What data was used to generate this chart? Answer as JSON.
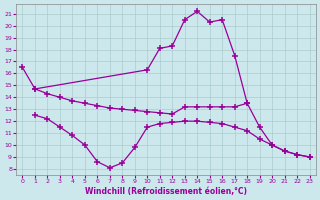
{
  "xlabel": "Windchill (Refroidissement éolien,°C)",
  "bg_color": "#cce8ed",
  "line_color": "#990099",
  "grid_color": "#aacccc",
  "xA": [
    0,
    1,
    10,
    11,
    12,
    13,
    14,
    15,
    16,
    17,
    18
  ],
  "yA": [
    16.5,
    14.7,
    16.3,
    18.1,
    18.3,
    20.5,
    21.2,
    20.3,
    20.5,
    17.5,
    13.5
  ],
  "xB": [
    1,
    2,
    3,
    4,
    5,
    6,
    7,
    8,
    9,
    10,
    11,
    12,
    13,
    14,
    15,
    16,
    17,
    18,
    19,
    20,
    21,
    22,
    23
  ],
  "yB": [
    14.7,
    14.3,
    14.0,
    13.7,
    13.5,
    13.3,
    13.1,
    13.0,
    12.9,
    12.8,
    12.7,
    12.6,
    13.2,
    13.2,
    13.2,
    13.2,
    13.2,
    13.5,
    11.5,
    10.0,
    9.5,
    9.2,
    9.0
  ],
  "xC": [
    1,
    2,
    3,
    4,
    5,
    6,
    7,
    8,
    9,
    10,
    11,
    12,
    13,
    14,
    15,
    16,
    17,
    18,
    19,
    20,
    21,
    22,
    23
  ],
  "yC": [
    12.5,
    12.2,
    11.5,
    10.8,
    10.0,
    8.6,
    8.1,
    8.5,
    9.8,
    11.5,
    11.8,
    11.9,
    12.0,
    12.0,
    11.9,
    11.8,
    11.5,
    11.2,
    10.5,
    10.0,
    9.5,
    9.2,
    9.0
  ],
  "ylim_lo": 7.5,
  "ylim_hi": 21.8,
  "xlim_lo": -0.5,
  "xlim_hi": 23.5,
  "yticks": [
    8,
    9,
    10,
    11,
    12,
    13,
    14,
    15,
    16,
    17,
    18,
    19,
    20,
    21
  ],
  "xticks": [
    0,
    1,
    2,
    3,
    4,
    5,
    6,
    7,
    8,
    9,
    10,
    11,
    12,
    13,
    14,
    15,
    16,
    17,
    18,
    19,
    20,
    21,
    22,
    23
  ]
}
